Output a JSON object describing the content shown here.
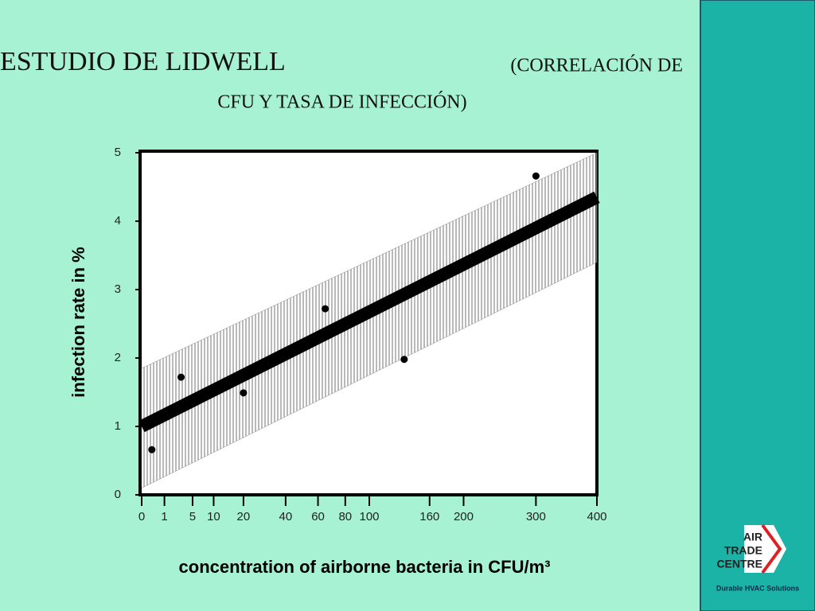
{
  "slide": {
    "title": "ESTUDIO DE LIDWELL",
    "subtitle_lines": [
      "(CORRELACIÓN DE",
      "CFU Y TASA DE INFECCIÓN)"
    ]
  },
  "logo": {
    "lines": [
      "AIR",
      "TRADE",
      "CENTRE"
    ],
    "tagline": "Durable HVAC Solutions"
  },
  "chart_data": {
    "type": "scatter",
    "x_label": "concentration of airborne bacteria in CFU/m³",
    "y_label": "infection rate in %",
    "x": [
      0.2,
      3,
      20,
      65,
      133,
      300
    ],
    "values": [
      0.66,
      1.72,
      1.49,
      2.72,
      1.98,
      4.66
    ],
    "color": "#000000",
    "fit": {
      "x": [
        0,
        400
      ],
      "values": [
        1.0,
        4.35
      ],
      "color": "#000000"
    },
    "band": {
      "x": [
        0,
        400
      ],
      "lower": [
        0.1,
        3.4
      ],
      "upper": [
        1.85,
        5.0
      ],
      "color": "#8a8a8a"
    },
    "xscale": "sqrt",
    "xlim": [
      0,
      400
    ],
    "xticks": [
      0,
      1,
      5,
      10,
      20,
      40,
      60,
      80,
      100,
      160,
      200,
      300,
      400
    ],
    "ylim": [
      0,
      5
    ],
    "yticks": [
      0,
      1,
      2,
      3,
      4,
      5
    ]
  }
}
